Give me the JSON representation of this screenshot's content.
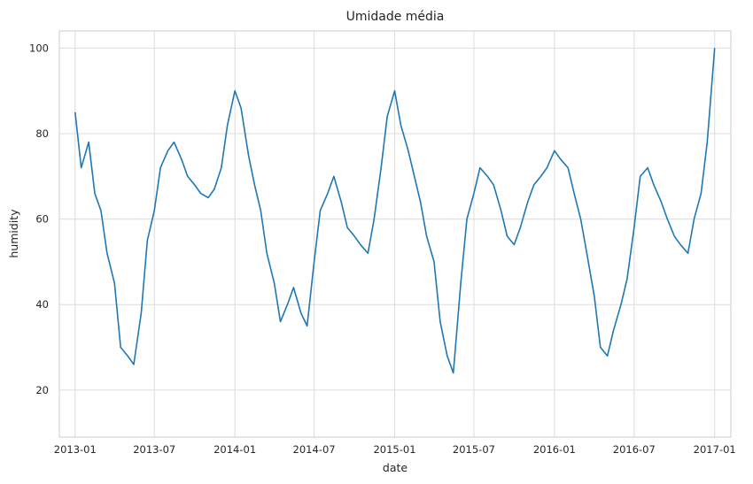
{
  "chart_data": {
    "type": "line",
    "title": "Umidade média",
    "xlabel": "date",
    "ylabel": "humidity",
    "xlim": [
      "2012-11-26",
      "2017-02-07"
    ],
    "ylim": [
      9,
      104
    ],
    "x_ticks": [
      "2013-01",
      "2013-07",
      "2014-01",
      "2014-07",
      "2015-01",
      "2015-07",
      "2016-01",
      "2016-07",
      "2017-01"
    ],
    "y_ticks": [
      20,
      40,
      60,
      80,
      100
    ],
    "grid": true,
    "line_color": "#1f77b4",
    "series": [
      {
        "x": [
          "2013-01-01",
          "2013-01-15",
          "2013-02-01",
          "2013-02-15",
          "2013-03-01",
          "2013-03-15",
          "2013-04-01",
          "2013-04-15",
          "2013-05-01",
          "2013-05-15",
          "2013-06-01",
          "2013-06-15",
          "2013-07-01",
          "2013-07-15",
          "2013-08-01",
          "2013-08-15",
          "2013-09-01",
          "2013-09-15",
          "2013-10-01",
          "2013-10-15",
          "2013-11-01",
          "2013-11-15",
          "2013-12-01",
          "2013-12-15",
          "2014-01-01",
          "2014-01-15",
          "2014-02-01",
          "2014-02-15",
          "2014-03-01",
          "2014-03-15",
          "2014-04-01",
          "2014-04-15",
          "2014-05-01",
          "2014-05-15",
          "2014-06-01",
          "2014-06-15",
          "2014-07-01",
          "2014-07-15",
          "2014-08-01",
          "2014-08-15",
          "2014-09-01",
          "2014-09-15",
          "2014-10-01",
          "2014-10-15",
          "2014-11-01",
          "2014-11-15",
          "2014-12-01",
          "2014-12-15",
          "2015-01-01",
          "2015-01-15",
          "2015-02-01",
          "2015-02-15",
          "2015-03-01",
          "2015-03-15",
          "2015-04-01",
          "2015-04-15",
          "2015-05-01",
          "2015-05-15",
          "2015-06-01",
          "2015-06-15",
          "2015-07-01",
          "2015-07-15",
          "2015-08-01",
          "2015-08-15",
          "2015-09-01",
          "2015-09-15",
          "2015-10-01",
          "2015-10-15",
          "2015-11-01",
          "2015-11-15",
          "2015-12-01",
          "2015-12-15",
          "2016-01-01",
          "2016-01-15",
          "2016-02-01",
          "2016-02-15",
          "2016-03-01",
          "2016-03-15",
          "2016-04-01",
          "2016-04-15",
          "2016-05-01",
          "2016-05-15",
          "2016-06-01",
          "2016-06-15",
          "2016-07-01",
          "2016-07-15",
          "2016-08-01",
          "2016-08-15",
          "2016-09-01",
          "2016-09-15",
          "2016-10-01",
          "2016-10-15",
          "2016-11-01",
          "2016-11-15",
          "2016-12-01",
          "2016-12-15",
          "2017-01-01"
        ],
        "y": [
          85,
          72,
          78,
          66,
          62,
          52,
          45,
          30,
          28,
          26,
          38,
          55,
          62,
          72,
          76,
          78,
          74,
          70,
          68,
          66,
          65,
          67,
          72,
          82,
          90,
          86,
          75,
          68,
          62,
          52,
          45,
          36,
          40,
          44,
          38,
          35,
          50,
          62,
          66,
          70,
          64,
          58,
          56,
          54,
          52,
          60,
          72,
          84,
          90,
          82,
          76,
          70,
          64,
          56,
          50,
          36,
          28,
          24,
          45,
          60,
          66,
          72,
          70,
          68,
          62,
          56,
          54,
          58,
          64,
          68,
          70,
          72,
          76,
          74,
          72,
          66,
          60,
          52,
          42,
          30,
          28,
          34,
          40,
          46,
          58,
          70,
          72,
          68,
          64,
          60,
          56,
          54,
          52,
          60,
          66,
          78,
          100
        ]
      }
    ]
  }
}
